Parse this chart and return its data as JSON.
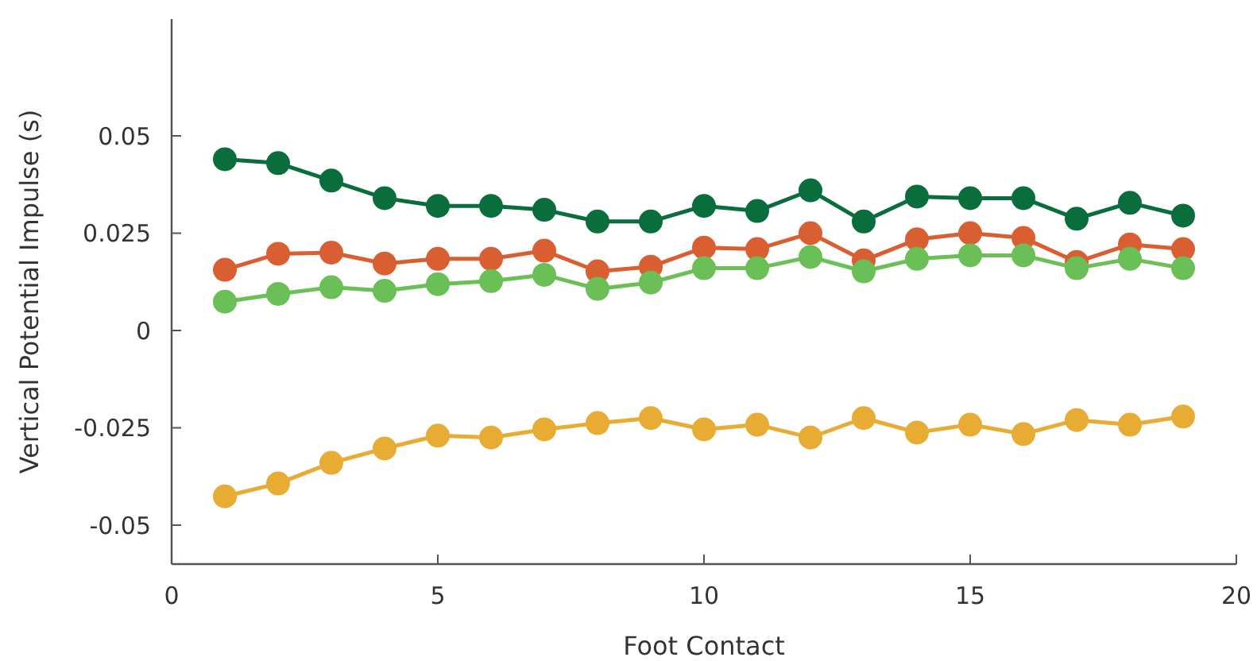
{
  "chart_data": {
    "type": "line",
    "xlabel": "Foot Contact",
    "ylabel": "Vertical Potential Impulse (s)",
    "x": [
      1,
      2,
      3,
      4,
      5,
      6,
      7,
      8,
      9,
      10,
      11,
      12,
      13,
      14,
      15,
      16,
      17,
      18,
      19
    ],
    "xlim": [
      0,
      20
    ],
    "xticks": [
      0,
      5,
      10,
      15,
      20
    ],
    "ylim": [
      -0.06,
      0.08
    ],
    "yticks": [
      {
        "value": -0.05,
        "label": "-0.05"
      },
      {
        "value": -0.025,
        "label": "-0.025"
      },
      0,
      {
        "value": 0.025,
        "label": "0.025"
      },
      {
        "value": 0.05,
        "label": "0.05"
      }
    ],
    "marker": "circle",
    "grid": false,
    "series": [
      {
        "color": "#0a6e3c",
        "values": [
          0.044,
          0.043,
          0.0385,
          0.034,
          0.032,
          0.032,
          0.031,
          0.028,
          0.028,
          0.032,
          0.0307,
          0.036,
          0.028,
          0.0344,
          0.034,
          0.034,
          0.0287,
          0.0328,
          0.0295
        ]
      },
      {
        "color": "#d95f33",
        "values": [
          0.0156,
          0.0197,
          0.02,
          0.0172,
          0.0184,
          0.0184,
          0.0205,
          0.0152,
          0.0164,
          0.0213,
          0.0209,
          0.025,
          0.018,
          0.0234,
          0.025,
          0.0238,
          0.0176,
          0.0221,
          0.0209
        ]
      },
      {
        "color": "#6abf57",
        "values": [
          0.0074,
          0.0094,
          0.0111,
          0.0102,
          0.0119,
          0.0127,
          0.0143,
          0.0107,
          0.0123,
          0.016,
          0.016,
          0.0189,
          0.0152,
          0.0184,
          0.0193,
          0.0193,
          0.016,
          0.0184,
          0.016
        ]
      },
      {
        "color": "#e8ac35",
        "values": [
          -0.0426,
          -0.0393,
          -0.034,
          -0.0303,
          -0.027,
          -0.0275,
          -0.0254,
          -0.0238,
          -0.0225,
          -0.0254,
          -0.0242,
          -0.0275,
          -0.0225,
          -0.0262,
          -0.0242,
          -0.0266,
          -0.023,
          -0.0242,
          -0.0221
        ]
      }
    ]
  }
}
